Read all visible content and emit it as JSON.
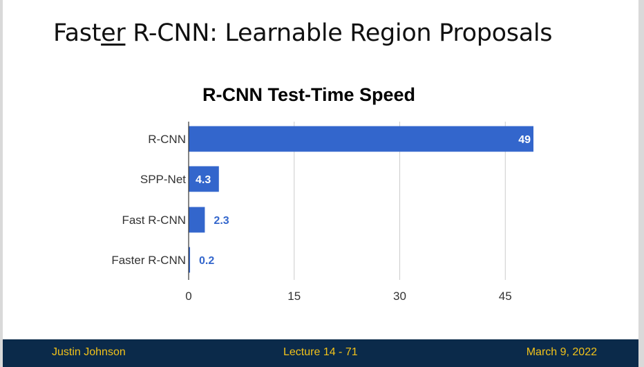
{
  "slide": {
    "title_pre": "Fast",
    "title_underlined": "er",
    "title_post": " R-CNN: Learnable Region Proposals"
  },
  "footer": {
    "author": "Justin Johnson",
    "lecture": "Lecture 14 -  71",
    "date": "March 9, 2022"
  },
  "colors": {
    "bar": "#3366cc",
    "label_outside": "#3366cc",
    "label_inside": "#ffffff",
    "footer_bg": "#0b2a4a",
    "footer_text": "#f2c21a",
    "grid": "#cccccc"
  },
  "chart_data": {
    "type": "bar",
    "orientation": "horizontal",
    "title": "R-CNN Test-Time Speed",
    "categories": [
      "R-CNN",
      "SPP-Net",
      "Fast R-CNN",
      "Faster R-CNN"
    ],
    "values": [
      49,
      4.3,
      2.3,
      0.2
    ],
    "value_labels": [
      "49",
      "4.3",
      "2.3",
      "0.2"
    ],
    "xlim": [
      0,
      49
    ],
    "xticks": [
      0,
      15,
      30,
      45
    ],
    "grid": true,
    "legend": "none",
    "xlabel": "",
    "ylabel": ""
  }
}
